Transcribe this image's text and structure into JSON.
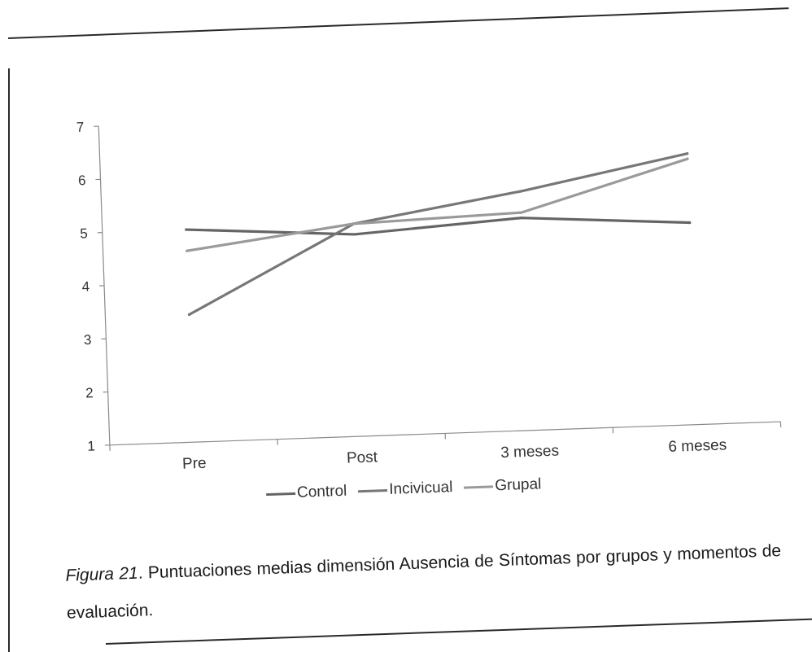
{
  "chart_data": {
    "type": "line",
    "title": "",
    "xlabel": "",
    "ylabel": "",
    "categories": [
      "Pre",
      "Post",
      "3 meses",
      "6 meses"
    ],
    "ylim": [
      1,
      7
    ],
    "yticks": [
      1,
      2,
      3,
      4,
      5,
      6,
      7
    ],
    "grid": false,
    "legend_position": "bottom",
    "series": [
      {
        "name": "Control",
        "values": [
          5.0,
          4.8,
          5.0,
          4.8
        ],
        "color": "#656565"
      },
      {
        "name": "Incivicual",
        "values": [
          3.4,
          5.0,
          5.5,
          6.1
        ],
        "color": "#777777"
      },
      {
        "name": "Grupal",
        "values": [
          4.6,
          5.0,
          5.1,
          6.0
        ],
        "color": "#9a9a9a"
      }
    ]
  },
  "caption": {
    "label": "Figura 21",
    "text": ". Puntuaciones medias dimensión Ausencia de Síntomas por grupos y momentos de evaluación."
  }
}
